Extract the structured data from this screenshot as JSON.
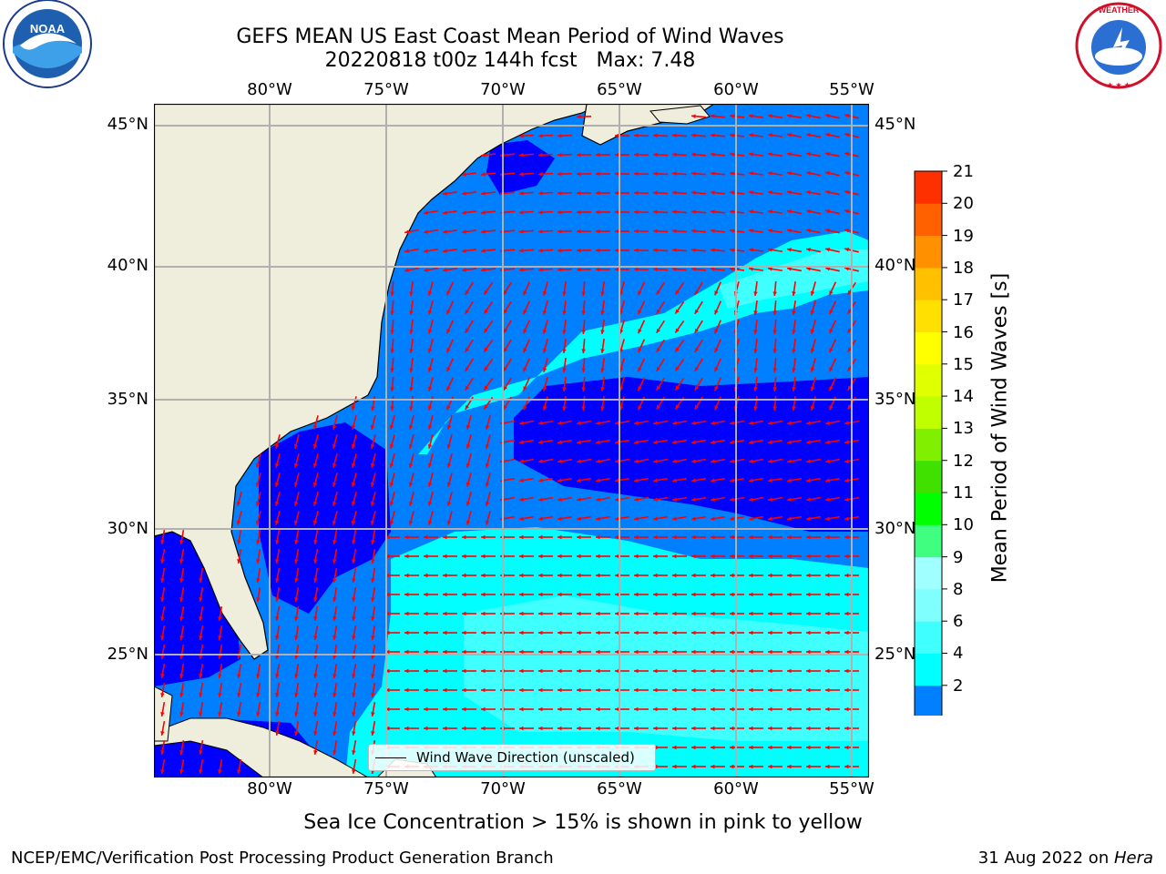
{
  "header": {
    "title_line1": "GEFS MEAN US East Coast Mean Period of Wind Waves",
    "title_line2": "20220818 t00z 144h fcst   Max: 7.48"
  },
  "map": {
    "lon_labels": [
      "80°W",
      "75°W",
      "70°W",
      "65°W",
      "60°W",
      "55°W"
    ],
    "lat_labels": [
      "45°N",
      "40°N",
      "35°N",
      "30°N",
      "25°N"
    ],
    "legend_label": "Wind Wave Direction (unscaled)",
    "colors": {
      "land": "#efeddb",
      "blue": "#0000ff",
      "medium_blue": "#0080ff",
      "cyan": "#00ffff",
      "light_cyan": "#40ffff",
      "arrow": "#ff0000",
      "grid": "#b0b0b0"
    }
  },
  "colorbar": {
    "label": "Mean Period of Wind Waves [s]",
    "ticks": [
      "2",
      "4",
      "6",
      "8",
      "9",
      "10",
      "11",
      "12",
      "13",
      "14",
      "15",
      "16",
      "17",
      "18",
      "19",
      "20",
      "21"
    ],
    "colors": [
      "#0080ff",
      "#00ffff",
      "#40ffff",
      "#80ffff",
      "#a0ffff",
      "#40ff80",
      "#00ff00",
      "#40e000",
      "#80f000",
      "#c0ff00",
      "#e0ff00",
      "#ffff00",
      "#ffe000",
      "#ffc000",
      "#ff9000",
      "#ff6000",
      "#ff3000",
      "#ff0000"
    ],
    "under_color": "#0000ff"
  },
  "footer": {
    "sea_ice_note": "Sea Ice Concentration > 15% is shown in pink to yellow",
    "credit": "NCEP/EMC/Verification Post Processing Product Generation Branch",
    "date": "31 Aug 2022 on ",
    "machine": "Hera"
  },
  "logos": {
    "noaa_text": "NOAA",
    "nws_text": "NATIONAL WEATHER SERVICE"
  }
}
